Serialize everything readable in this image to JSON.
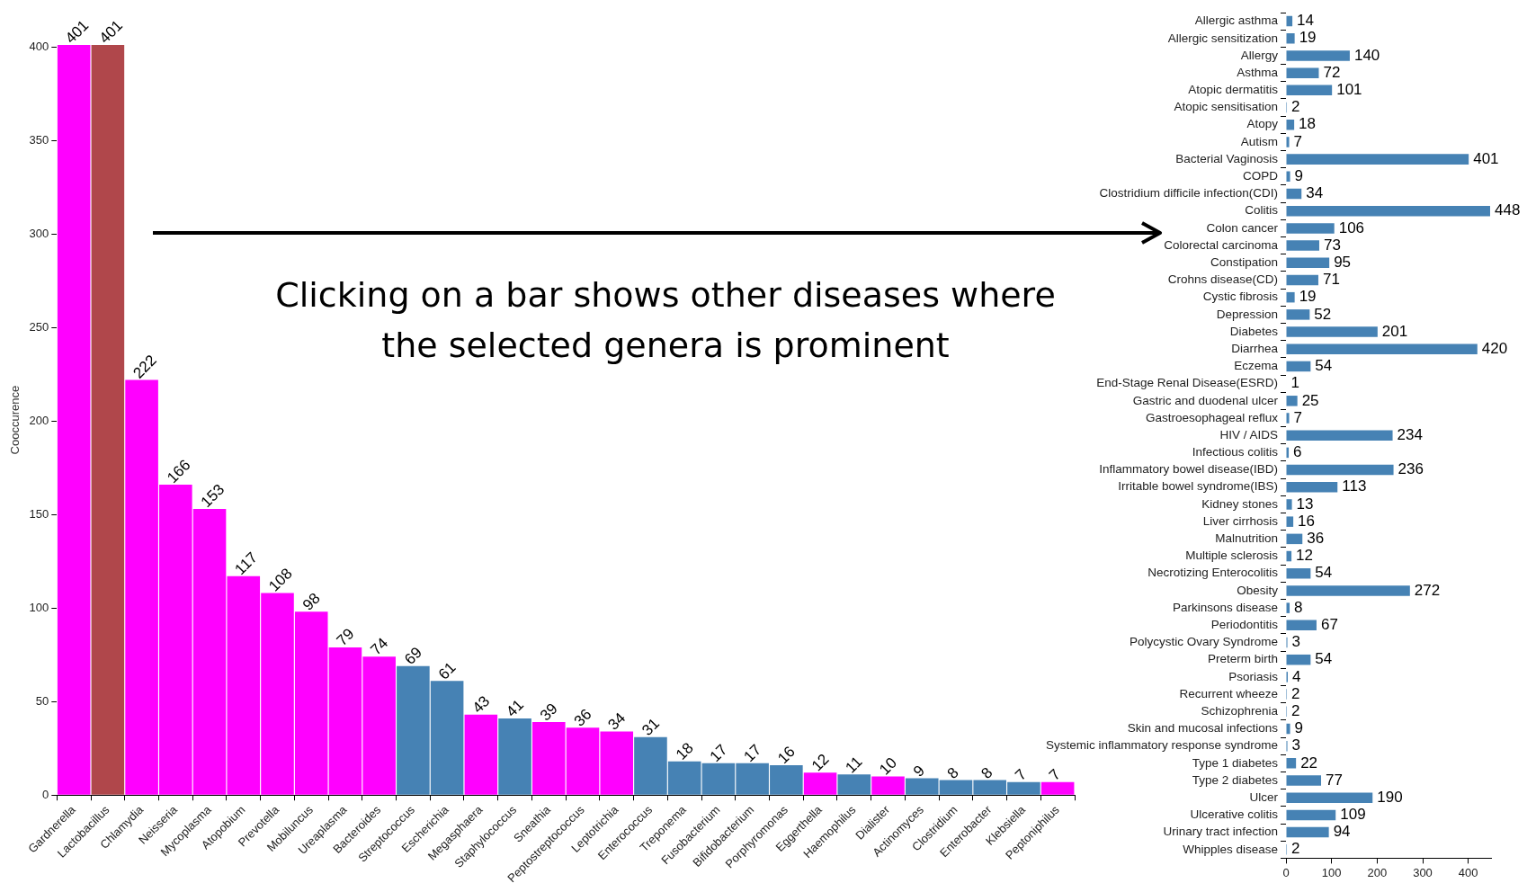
{
  "chart_data": [
    {
      "type": "bar",
      "ylabel": "Cooccurence",
      "categories": [
        "Gardnerella",
        "Lactobacillus",
        "Chlamydia",
        "Neisseria",
        "Mycoplasma",
        "Atopobium",
        "Prevotella",
        "Mobiluncus",
        "Ureaplasma",
        "Bacteroides",
        "Streptococcus",
        "Escherichia",
        "Megasphaera",
        "Staphylococcus",
        "Sneathia",
        "Peptostreptococcus",
        "Leptotrichia",
        "Enterococcus",
        "Treponema",
        "Fusobacterium",
        "Bifidobacterium",
        "Porphyromonas",
        "Eggerthella",
        "Haemophilus",
        "Dialister",
        "Actinomyces",
        "Clostridium",
        "Enterobacter",
        "Klebsiella",
        "Peptoniphilus"
      ],
      "values": [
        401,
        401,
        222,
        166,
        153,
        117,
        108,
        98,
        79,
        74,
        69,
        61,
        43,
        41,
        39,
        36,
        34,
        31,
        18,
        17,
        17,
        16,
        12,
        11,
        10,
        9,
        8,
        8,
        7,
        7
      ],
      "colors": [
        "#ff00ff",
        "#b0474b",
        "#ff00ff",
        "#ff00ff",
        "#ff00ff",
        "#ff00ff",
        "#ff00ff",
        "#ff00ff",
        "#ff00ff",
        "#ff00ff",
        "#4682b4",
        "#4682b4",
        "#ff00ff",
        "#4682b4",
        "#ff00ff",
        "#ff00ff",
        "#ff00ff",
        "#4682b4",
        "#4682b4",
        "#4682b4",
        "#4682b4",
        "#4682b4",
        "#ff00ff",
        "#4682b4",
        "#ff00ff",
        "#4682b4",
        "#4682b4",
        "#4682b4",
        "#4682b4",
        "#ff00ff"
      ],
      "ylim": [
        0,
        401
      ],
      "yticks": [
        0,
        50,
        100,
        150,
        200,
        250,
        300,
        350,
        400
      ],
      "data_labels": true,
      "annotations": [
        "Clicking on a bar shows other diseases where the selected genera is prominent"
      ]
    },
    {
      "type": "bar",
      "orientation": "horizontal",
      "color": "#4682b4",
      "data_labels": true,
      "xlim": [
        0,
        450
      ],
      "xticks": [
        0,
        100,
        200,
        300,
        400
      ],
      "categories": [
        "Allergic asthma",
        "Allergic sensitization",
        "Allergy",
        "Asthma",
        "Atopic dermatitis",
        "Atopic sensitisation",
        "Atopy",
        "Autism",
        "Bacterial Vaginosis",
        "COPD",
        "Clostridium difficile infection(CDI)",
        "Colitis",
        "Colon cancer",
        "Colorectal carcinoma",
        "Constipation",
        "Crohns disease(CD)",
        "Cystic fibrosis",
        "Depression",
        "Diabetes",
        "Diarrhea",
        "Eczema",
        "End-Stage Renal Disease(ESRD)",
        "Gastric and duodenal ulcer",
        "Gastroesophageal reflux",
        "HIV / AIDS",
        "Infectious colitis",
        "Inflammatory bowel disease(IBD)",
        "Irritable bowel syndrome(IBS)",
        "Kidney stones",
        "Liver cirrhosis",
        "Malnutrition",
        "Multiple sclerosis",
        "Necrotizing Enterocolitis",
        "Obesity",
        "Parkinsons disease",
        "Periodontitis",
        "Polycystic Ovary Syndrome",
        "Preterm birth",
        "Psoriasis",
        "Recurrent wheeze",
        "Schizophrenia",
        "Skin and mucosal infections",
        "Systemic inflammatory response syndrome",
        "Type 1 diabetes",
        "Type 2 diabetes",
        "Ulcer",
        "Ulcerative colitis",
        "Urinary tract infection",
        "Whipples disease"
      ],
      "values": [
        14,
        19,
        140,
        72,
        101,
        2,
        18,
        7,
        401,
        9,
        34,
        448,
        106,
        73,
        95,
        71,
        19,
        52,
        201,
        420,
        54,
        1,
        25,
        7,
        234,
        6,
        236,
        113,
        13,
        16,
        36,
        12,
        54,
        272,
        8,
        67,
        3,
        54,
        4,
        2,
        2,
        9,
        3,
        22,
        77,
        190,
        109,
        94,
        2
      ]
    }
  ]
}
